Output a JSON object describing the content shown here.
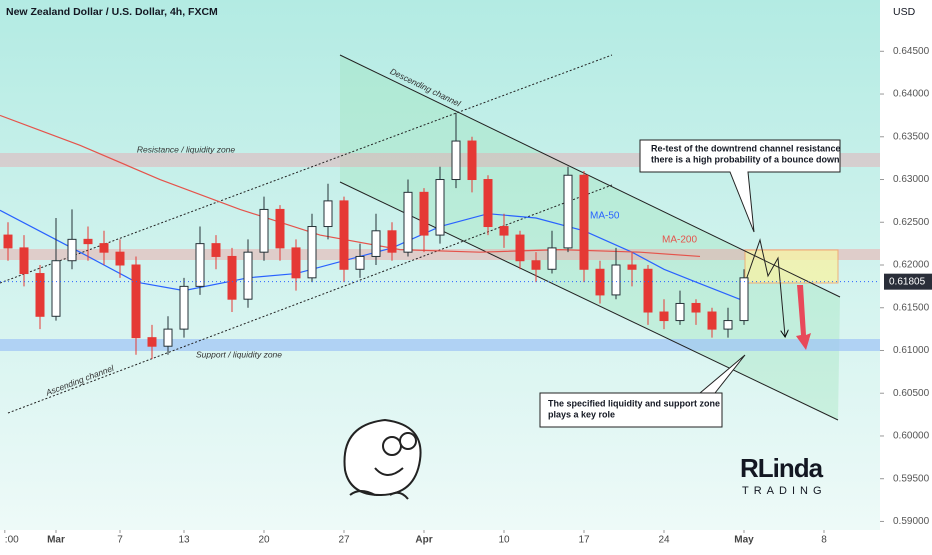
{
  "chart_data": {
    "type": "candlestick",
    "title": "New Zealand Dollar / U.S. Dollar, 4h, FXCM",
    "currency": "USD",
    "x": [
      -3,
      -2,
      -1,
      0,
      1,
      2,
      3,
      4,
      5,
      6,
      7,
      8,
      9,
      10,
      11,
      12,
      13,
      14,
      15,
      16,
      17,
      18,
      19,
      20,
      21,
      22,
      23,
      24,
      25,
      26,
      27,
      28,
      29,
      30,
      31,
      32,
      33,
      34,
      35,
      36,
      37,
      38,
      39,
      40,
      41,
      42,
      43
    ],
    "candles": [
      [
        0.6235,
        0.625,
        0.6205,
        0.622
      ],
      [
        0.622,
        0.6235,
        0.6175,
        0.619
      ],
      [
        0.619,
        0.62,
        0.6125,
        0.614
      ],
      [
        0.614,
        0.6255,
        0.6135,
        0.6205
      ],
      [
        0.6205,
        0.6265,
        0.6195,
        0.623
      ],
      [
        0.623,
        0.6245,
        0.6205,
        0.6225
      ],
      [
        0.6225,
        0.624,
        0.62,
        0.6215
      ],
      [
        0.6215,
        0.623,
        0.6185,
        0.62
      ],
      [
        0.62,
        0.621,
        0.6095,
        0.6115
      ],
      [
        0.6115,
        0.613,
        0.609,
        0.6105
      ],
      [
        0.6105,
        0.614,
        0.6095,
        0.6125
      ],
      [
        0.6125,
        0.6185,
        0.6115,
        0.6175
      ],
      [
        0.6175,
        0.6245,
        0.6165,
        0.6225
      ],
      [
        0.6225,
        0.6235,
        0.6195,
        0.621
      ],
      [
        0.621,
        0.622,
        0.6145,
        0.616
      ],
      [
        0.616,
        0.623,
        0.615,
        0.6215
      ],
      [
        0.6215,
        0.628,
        0.6205,
        0.6265
      ],
      [
        0.6265,
        0.627,
        0.6205,
        0.622
      ],
      [
        0.622,
        0.623,
        0.617,
        0.6185
      ],
      [
        0.6185,
        0.626,
        0.618,
        0.6245
      ],
      [
        0.6245,
        0.6295,
        0.623,
        0.6275
      ],
      [
        0.6275,
        0.628,
        0.618,
        0.6195
      ],
      [
        0.6195,
        0.6225,
        0.6185,
        0.621
      ],
      [
        0.621,
        0.626,
        0.62,
        0.624
      ],
      [
        0.624,
        0.625,
        0.6205,
        0.6215
      ],
      [
        0.6215,
        0.63,
        0.621,
        0.6285
      ],
      [
        0.6285,
        0.629,
        0.6215,
        0.6235
      ],
      [
        0.6235,
        0.6315,
        0.6225,
        0.63
      ],
      [
        0.63,
        0.6378,
        0.629,
        0.6345
      ],
      [
        0.6345,
        0.635,
        0.6285,
        0.63
      ],
      [
        0.63,
        0.6305,
        0.6235,
        0.6245
      ],
      [
        0.6245,
        0.626,
        0.622,
        0.6235
      ],
      [
        0.6235,
        0.624,
        0.6195,
        0.6205
      ],
      [
        0.6205,
        0.6215,
        0.618,
        0.6195
      ],
      [
        0.6195,
        0.624,
        0.619,
        0.622
      ],
      [
        0.622,
        0.6315,
        0.6215,
        0.6305
      ],
      [
        0.6305,
        0.631,
        0.618,
        0.6195
      ],
      [
        0.6195,
        0.6205,
        0.6155,
        0.6165
      ],
      [
        0.6165,
        0.622,
        0.616,
        0.62
      ],
      [
        0.62,
        0.6215,
        0.6175,
        0.6195
      ],
      [
        0.6195,
        0.62,
        0.613,
        0.6145
      ],
      [
        0.6145,
        0.616,
        0.6125,
        0.6135
      ],
      [
        0.6135,
        0.617,
        0.613,
        0.6155
      ],
      [
        0.6155,
        0.616,
        0.613,
        0.6145
      ],
      [
        0.6145,
        0.615,
        0.6115,
        0.6125
      ],
      [
        0.6125,
        0.615,
        0.6115,
        0.6135
      ],
      [
        0.6135,
        0.6195,
        0.613,
        0.6185
      ]
    ],
    "up_color": "#263238",
    "down_color": "#e53935",
    "series": [
      {
        "name": "MA-50",
        "color": "#2962ff",
        "x": [
          -3.5,
          1.5,
          5,
          8,
          12,
          15,
          18,
          21,
          24,
          27,
          30,
          33,
          36,
          38,
          40,
          43
        ],
        "values": [
          0.6264,
          0.6215,
          0.618,
          0.617,
          0.6185,
          0.619,
          0.6205,
          0.622,
          0.6245,
          0.626,
          0.6255,
          0.624,
          0.6215,
          0.6195,
          0.618,
          0.6158
        ]
      },
      {
        "name": "MA-200",
        "color": "#e5534b",
        "x": [
          -3.5,
          1.5,
          6.5,
          11.5,
          16.5,
          21.5,
          26.5,
          31.5,
          36.5,
          40.25
        ],
        "values": [
          0.6375,
          0.634,
          0.63,
          0.6265,
          0.6235,
          0.6218,
          0.6215,
          0.6218,
          0.6215,
          0.621
        ]
      }
    ],
    "xlim": [
      -3.5,
      51.5
    ],
    "xticks": [
      {
        "value": -3.2,
        "label": ":00"
      },
      {
        "value": 0,
        "label": "Mar"
      },
      {
        "value": 4,
        "label": "7"
      },
      {
        "value": 8,
        "label": "13"
      },
      {
        "value": 13,
        "label": "20"
      },
      {
        "value": 18,
        "label": "27"
      },
      {
        "value": 23,
        "label": "Apr"
      },
      {
        "value": 28,
        "label": "10"
      },
      {
        "value": 33,
        "label": "17"
      },
      {
        "value": 38,
        "label": "24"
      },
      {
        "value": 43,
        "label": "May"
      },
      {
        "value": 48,
        "label": "8"
      }
    ],
    "ylim": [
      0.589,
      0.651
    ],
    "yticks": [
      {
        "value": 0.59,
        "label": "0.59000"
      },
      {
        "value": 0.595,
        "label": "0.59500"
      },
      {
        "value": 0.6,
        "label": "0.60000"
      },
      {
        "value": 0.605,
        "label": "0.60500"
      },
      {
        "value": 0.61,
        "label": "0.61000"
      },
      {
        "value": 0.615,
        "label": "0.61500"
      },
      {
        "value": 0.62,
        "label": "0.62000"
      },
      {
        "value": 0.625,
        "label": "0.62500"
      },
      {
        "value": 0.63,
        "label": "0.63000"
      },
      {
        "value": 0.635,
        "label": "0.63500"
      },
      {
        "value": 0.64,
        "label": "0.64000"
      },
      {
        "value": 0.645,
        "label": "0.64500"
      }
    ],
    "last_price": 0.61805,
    "annotations": [
      "Descending channel",
      "Ascending channel",
      "Resistance / liquidity zone",
      "Support / liquidity zone"
    ],
    "callouts": [
      [
        "Re-test of the downtrend channel resistance",
        "there is a high probability of a bounce down"
      ],
      [
        "The specified liquidity and support zone",
        "plays a key role"
      ]
    ],
    "logo": [
      "RLinda",
      "TRADING"
    ]
  }
}
